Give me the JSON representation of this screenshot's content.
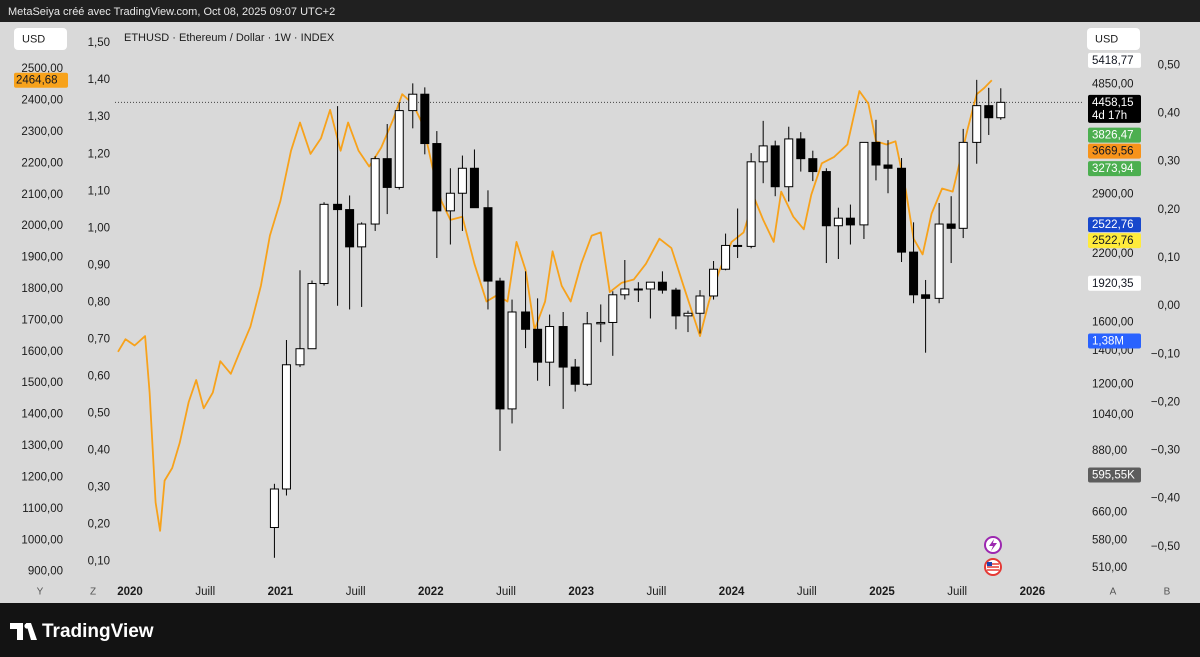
{
  "header": {
    "text": "MetaSeiya créé avec TradingView.com, Oct 08, 2025 09:07 UTC+2"
  },
  "footer": {
    "brand": "TradingView"
  },
  "controls": {
    "left_currency": "USD",
    "right_currency": "USD",
    "left_scale_a": "Y",
    "left_scale_b": "Z",
    "right_scale_a": "A",
    "right_scale_b": "B"
  },
  "chart_data": {
    "type": "candlestick",
    "title": "ETHUSD · Ethereum / Dollar · 1W · INDEX",
    "xlim": [
      2019.88,
      2026.33
    ],
    "xticks": [
      2020,
      {
        "value": 2020.5,
        "label": "Juill"
      },
      2021,
      {
        "value": 2021.5,
        "label": "Juill"
      },
      2022,
      {
        "value": 2022.5,
        "label": "Juill"
      },
      2023,
      {
        "value": 2023.5,
        "label": "Juill"
      },
      2024,
      {
        "value": 2024.5,
        "label": "Juill"
      },
      2025,
      {
        "value": 2025.5,
        "label": "Juill"
      },
      2026
    ],
    "ylim": [
      867,
      2650
    ],
    "yticks": [
      {
        "value": 2500,
        "label": "2500,00"
      },
      {
        "value": 2400,
        "label": "2400,00"
      },
      {
        "value": 2300,
        "label": "2300,00"
      },
      {
        "value": 2200,
        "label": "2200,00"
      },
      {
        "value": 2100,
        "label": "2100,00"
      },
      {
        "value": 2000,
        "label": "2000,00"
      },
      {
        "value": 1900,
        "label": "1900,00"
      },
      {
        "value": 1800,
        "label": "1800,00"
      },
      {
        "value": 1700,
        "label": "1700,00"
      },
      {
        "value": 1600,
        "label": "1600,00"
      },
      {
        "value": 1500,
        "label": "1500,00"
      },
      {
        "value": 1400,
        "label": "1400,00"
      },
      {
        "value": 1300,
        "label": "1300,00"
      },
      {
        "value": 1200,
        "label": "1200,00"
      },
      {
        "value": 1100,
        "label": "1100,00"
      },
      {
        "value": 1000,
        "label": "1000,00"
      },
      {
        "value": 900,
        "label": "900,00"
      }
    ],
    "y3lim": [
      0.045,
      1.557
    ],
    "y3ticks": [
      {
        "value": 1.5,
        "label": "1,50"
      },
      {
        "value": 1.4,
        "label": "1,40"
      },
      {
        "value": 1.3,
        "label": "1,30"
      },
      {
        "value": 1.2,
        "label": "1,20"
      },
      {
        "value": 1.1,
        "label": "1,10"
      },
      {
        "value": 1.0,
        "label": "1,00"
      },
      {
        "value": 0.9,
        "label": "0,90"
      },
      {
        "value": 0.8,
        "label": "0,80"
      },
      {
        "value": 0.7,
        "label": "0,70"
      },
      {
        "value": 0.6,
        "label": "0,60"
      },
      {
        "value": 0.5,
        "label": "0,50"
      },
      {
        "value": 0.4,
        "label": "0,40"
      },
      {
        "value": 0.3,
        "label": "0,30"
      },
      {
        "value": 0.2,
        "label": "0,20"
      },
      {
        "value": 0.1,
        "label": "0,10"
      }
    ],
    "y2lim": [
      478,
      6480
    ],
    "y2log": true,
    "y2ticks": [
      {
        "value": 4850,
        "label": "4850,00"
      },
      {
        "value": 2900,
        "label": "2900,00"
      },
      {
        "value": 2200,
        "label": "2200,00"
      },
      {
        "value": 1600,
        "label": "1600,00"
      },
      {
        "value": 1400,
        "label": "1400,00"
      },
      {
        "value": 1200,
        "label": "1200,00"
      },
      {
        "value": 1040,
        "label": "1040,00"
      },
      {
        "value": 880,
        "label": "880,00"
      },
      {
        "value": 660,
        "label": "660,00"
      },
      {
        "value": 580,
        "label": "580,00"
      },
      {
        "value": 510,
        "label": "510,00"
      }
    ],
    "y4lim": [
      -0.573,
      0.59
    ],
    "y4ticks": [
      {
        "value": 0.5,
        "label": "0,50"
      },
      {
        "value": 0.4,
        "label": "0,40"
      },
      {
        "value": 0.3,
        "label": "0,30"
      },
      {
        "value": 0.2,
        "label": "0,20"
      },
      {
        "value": 0.1,
        "label": "0,10"
      },
      {
        "value": 0,
        "label": "0,00"
      },
      {
        "value": -0.1,
        "label": "−0,10"
      },
      {
        "value": -0.2,
        "label": "−0,20"
      },
      {
        "value": -0.3,
        "label": "−0,30"
      },
      {
        "value": -0.4,
        "label": "−0,40"
      },
      {
        "value": -0.5,
        "label": "−0,50"
      }
    ],
    "grid": false,
    "line": {
      "color": "#f7a21b",
      "x": [
        2019.92,
        2019.97,
        2020.03,
        2020.1,
        2020.13,
        2020.17,
        2020.2,
        2020.23,
        2020.28,
        2020.33,
        2020.39,
        2020.44,
        2020.49,
        2020.55,
        2020.6,
        2020.67,
        2020.73,
        2020.8,
        2020.87,
        2020.93,
        2021.0,
        2021.07,
        2021.13,
        2021.2,
        2021.27,
        2021.33,
        2021.4,
        2021.45,
        2021.52,
        2021.59,
        2021.67,
        2021.75,
        2021.81,
        2021.88,
        2021.95,
        2022.01,
        2022.07,
        2022.13,
        2022.21,
        2022.29,
        2022.37,
        2022.44,
        2022.51,
        2022.57,
        2022.63,
        2022.69,
        2022.76,
        2022.81,
        2022.87,
        2022.93,
        2023.0,
        2023.07,
        2023.13,
        2023.19,
        2023.27,
        2023.35,
        2023.43,
        2023.52,
        2023.6,
        2023.68,
        2023.79,
        2023.85,
        2023.92,
        2024.0,
        2024.08,
        2024.15,
        2024.21,
        2024.28,
        2024.33,
        2024.41,
        2024.48,
        2024.53,
        2024.6,
        2024.68,
        2024.77,
        2024.85,
        2024.91,
        2024.96,
        2025.03,
        2025.09,
        2025.16,
        2025.21,
        2025.27,
        2025.33,
        2025.4,
        2025.47,
        2025.52,
        2025.57,
        2025.63,
        2025.68,
        2025.73
      ],
      "values": [
        1600,
        1640,
        1620,
        1650,
        1470,
        1120,
        1030,
        1190,
        1230,
        1310,
        1440,
        1510,
        1420,
        1470,
        1570,
        1530,
        1600,
        1680,
        1810,
        1970,
        2080,
        2240,
        2330,
        2230,
        2280,
        2370,
        2240,
        2330,
        2240,
        2190,
        2250,
        2340,
        2420,
        2390,
        2320,
        2190,
        2080,
        2020,
        2030,
        1880,
        1760,
        1780,
        1760,
        1950,
        1860,
        1670,
        1760,
        1920,
        1810,
        1760,
        1880,
        1970,
        1980,
        1790,
        1820,
        1830,
        1880,
        1960,
        1930,
        1810,
        1650,
        1760,
        1860,
        1950,
        1980,
        2090,
        2020,
        1950,
        2110,
        2030,
        1990,
        2100,
        2200,
        2220,
        2260,
        2430,
        2390,
        2270,
        2260,
        2270,
        2110,
        1960,
        1910,
        2040,
        2120,
        2110,
        2210,
        2310,
        2420,
        2440,
        2464.68
      ]
    },
    "line_tag": {
      "value": 2464.68,
      "label": "2464,68"
    },
    "candles": {
      "axis": "y2",
      "up_color": "#ffffff",
      "down_color": "#000000",
      "x": [
        2020.96,
        2021.04,
        2021.13,
        2021.21,
        2021.29,
        2021.38,
        2021.46,
        2021.54,
        2021.63,
        2021.71,
        2021.79,
        2021.88,
        2021.96,
        2022.04,
        2022.13,
        2022.21,
        2022.29,
        2022.38,
        2022.46,
        2022.54,
        2022.63,
        2022.71,
        2022.79,
        2022.88,
        2022.96,
        2023.04,
        2023.13,
        2023.21,
        2023.29,
        2023.38,
        2023.46,
        2023.54,
        2023.63,
        2023.71,
        2023.79,
        2023.88,
        2023.96,
        2024.04,
        2024.13,
        2024.21,
        2024.29,
        2024.38,
        2024.46,
        2024.54,
        2024.63,
        2024.71,
        2024.79,
        2024.88,
        2024.96,
        2025.04,
        2025.13,
        2025.21,
        2025.29,
        2025.38,
        2025.46,
        2025.54,
        2025.63,
        2025.71,
        2025.79
      ],
      "open": [
        616,
        737,
        1314,
        1416,
        1918,
        2773,
        2706,
        2275,
        2530,
        3430,
        3000,
        4290,
        4630,
        3680,
        2690,
        2920,
        3280,
        2730,
        1940,
        1070,
        1680,
        1550,
        1330,
        1570,
        1300,
        1200,
        1590,
        1600,
        1820,
        1870,
        1870,
        1930,
        1860,
        1650,
        1670,
        1810,
        2050,
        2290,
        2280,
        3380,
        3640,
        3010,
        3760,
        3430,
        3230,
        2510,
        2600,
        2520,
        3700,
        3330,
        3280,
        2220,
        1820,
        1790,
        2530,
        2480,
        3700,
        4390,
        4150
      ],
      "high": [
        755,
        1475,
        2040,
        1945,
        2800,
        4380,
        2890,
        2550,
        3470,
        4030,
        4460,
        4870,
        4780,
        3900,
        3280,
        3480,
        3580,
        2960,
        1970,
        1780,
        2030,
        1790,
        1660,
        1680,
        1350,
        1680,
        1740,
        1850,
        2140,
        1930,
        1930,
        2030,
        1880,
        1690,
        1860,
        2130,
        2420,
        2720,
        3520,
        4090,
        3730,
        3980,
        3880,
        3560,
        3280,
        2730,
        2770,
        3680,
        4110,
        3740,
        3440,
        2550,
        1950,
        2790,
        2880,
        3940,
        4950,
        4770,
        4760
      ],
      "low": [
        535,
        715,
        1300,
        1450,
        1900,
        1730,
        1700,
        1720,
        2450,
        2650,
        2970,
        3950,
        3500,
        2160,
        2300,
        2450,
        2800,
        1700,
        880,
        1000,
        1420,
        1220,
        1190,
        1070,
        1160,
        1190,
        1460,
        1370,
        1780,
        1760,
        1630,
        1830,
        1550,
        1530,
        1520,
        1780,
        2040,
        2160,
        2260,
        3060,
        2880,
        2810,
        3230,
        3090,
        2110,
        2150,
        2300,
        2360,
        3100,
        2920,
        2120,
        1750,
        1390,
        1750,
        2110,
        2370,
        3350,
        3830,
        4110
      ],
      "close": [
        737,
        1314,
        1416,
        1918,
        2773,
        2706,
        2275,
        2530,
        3430,
        3000,
        4290,
        4630,
        3680,
        2690,
        2920,
        3280,
        2730,
        1940,
        1070,
        1680,
        1550,
        1330,
        1570,
        1300,
        1200,
        1590,
        1600,
        1820,
        1870,
        1870,
        1930,
        1860,
        1650,
        1670,
        1810,
        2050,
        2290,
        2280,
        3380,
        3640,
        3010,
        3760,
        3430,
        3230,
        2510,
        2600,
        2520,
        3700,
        3330,
        3280,
        2220,
        1820,
        1790,
        2530,
        2480,
        3700,
        4390,
        4150,
        4458.15
      ]
    },
    "price_tags": [
      {
        "value": 5418.77,
        "label": "5418,77",
        "bg": "#ffffff",
        "fg": "#131722"
      },
      {
        "value": 4458.15,
        "label": "4458,15",
        "bg": "#000000",
        "fg": "#ffffff",
        "countdown": "4d 17h"
      },
      {
        "value": 3826.47,
        "label": "3826,47",
        "bg": "#4caf50",
        "fg": "#ffffff"
      },
      {
        "value": 3669.56,
        "label": "3669,56",
        "bg": "#f7931a",
        "fg": "#131722"
      },
      {
        "value": 3273.94,
        "label": "3273,94",
        "bg": "#4caf50",
        "fg": "#ffffff"
      },
      {
        "value": 2522.76,
        "label": "2522,76",
        "bg": "#1848cc",
        "fg": "#ffffff"
      },
      {
        "value": 2522.76,
        "label": "2522,76",
        "bg": "#ffeb3b",
        "fg": "#131722"
      },
      {
        "value": 1920.35,
        "label": "1920,35",
        "bg": "#ffffff",
        "fg": "#131722"
      }
    ],
    "volume_tags": [
      {
        "label": "1,38M",
        "bg": "#2962ff",
        "fg": "#ffffff"
      },
      {
        "label": "595,55K",
        "bg": "#5d5d5d",
        "fg": "#ffffff"
      }
    ]
  }
}
